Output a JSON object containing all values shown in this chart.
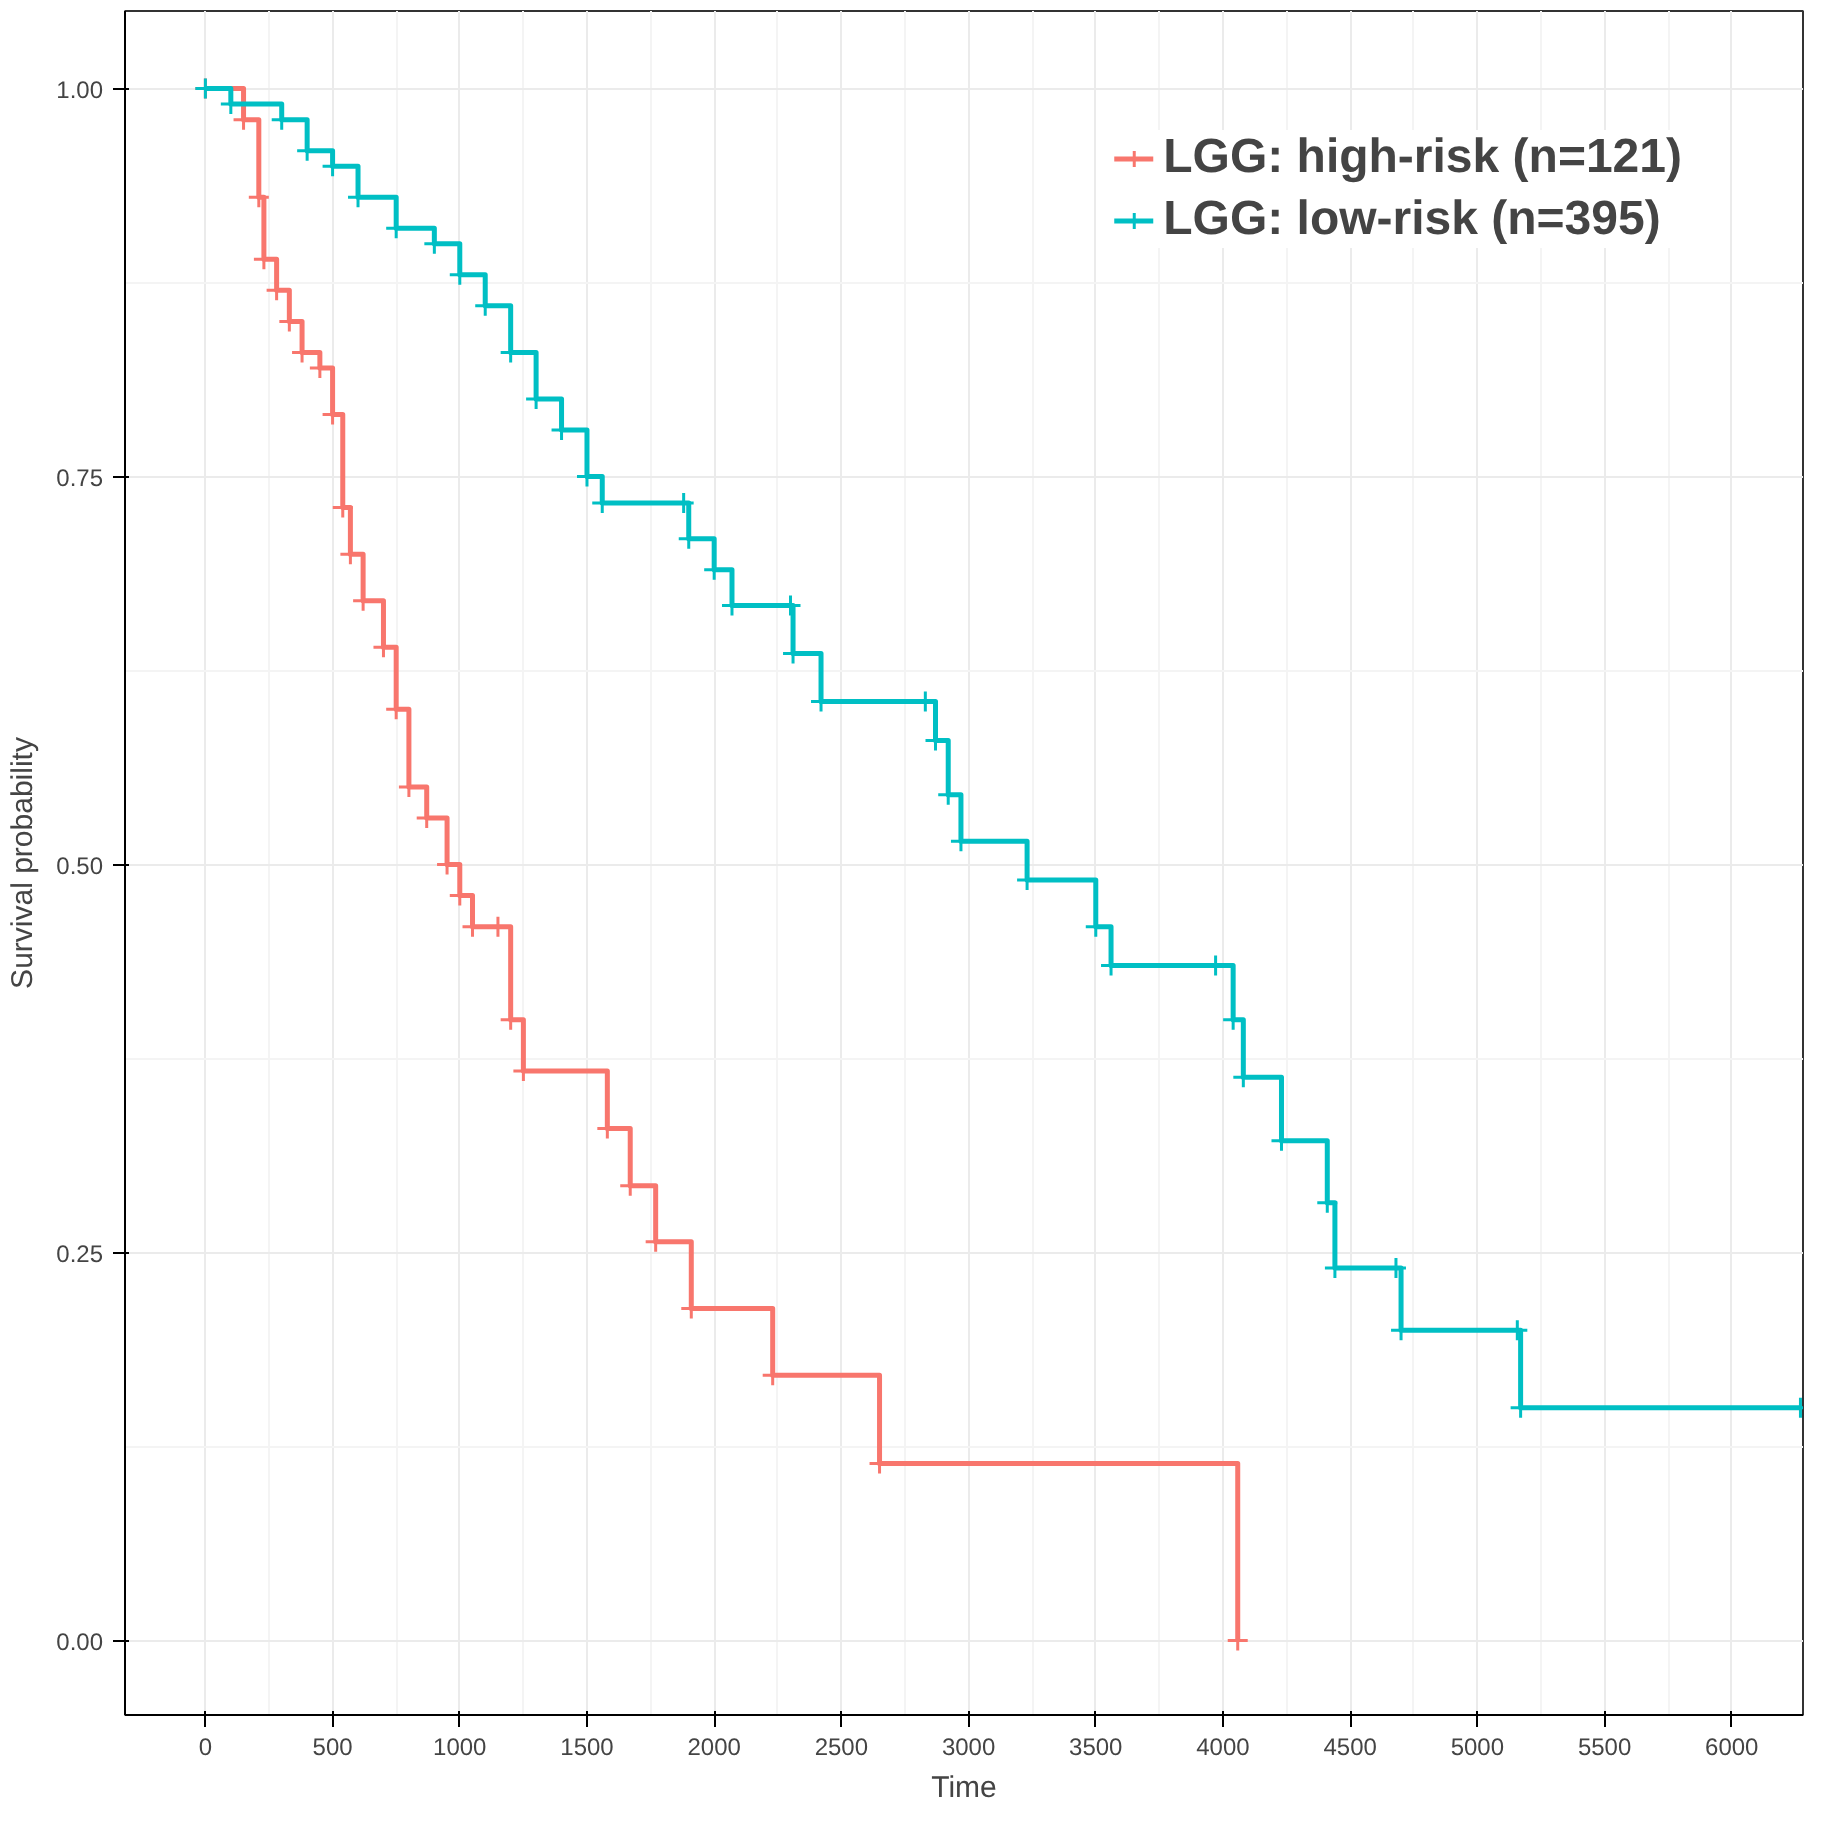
{
  "chart_data": {
    "type": "step",
    "xlabel": "Time",
    "ylabel": "Survival probability",
    "xlim": [
      -316,
      6280
    ],
    "ylim": [
      -0.048,
      1.05
    ],
    "xticks": [
      0,
      500,
      1000,
      1500,
      2000,
      2500,
      3000,
      3500,
      4000,
      4500,
      5000,
      5500,
      6000
    ],
    "yticks": [
      {
        "value": 0,
        "label": "0.00"
      },
      {
        "value": 0.25,
        "label": "0.25"
      },
      {
        "value": 0.5,
        "label": "0.50"
      },
      {
        "value": 0.75,
        "label": "0.75"
      },
      {
        "value": 1,
        "label": "1.00"
      }
    ],
    "grid": true,
    "legend": "top right",
    "marker": "cross",
    "line_style": "solid",
    "series": [
      {
        "name": "LGG: high-risk (n=121)",
        "color": "#f8766d",
        "x": [
          0,
          150,
          210,
          230,
          280,
          330,
          380,
          450,
          500,
          540,
          570,
          620,
          700,
          750,
          800,
          870,
          950,
          1000,
          1050,
          1150,
          1200,
          1250,
          1580,
          1670,
          1770,
          1910,
          2230,
          2650,
          4058
        ],
        "values": [
          1.0,
          0.98,
          0.93,
          0.89,
          0.87,
          0.85,
          0.83,
          0.82,
          0.79,
          0.73,
          0.7,
          0.67,
          0.64,
          0.6,
          0.55,
          0.53,
          0.5,
          0.48,
          0.46,
          0.46,
          0.4,
          0.367,
          0.33,
          0.293,
          0.257,
          0.214,
          0.171,
          0.114,
          0.0
        ]
      },
      {
        "name": "LGG: low-risk (n=395)",
        "color": "#00bfc4",
        "x": [
          0,
          100,
          300,
          400,
          500,
          600,
          750,
          900,
          1000,
          1100,
          1200,
          1300,
          1400,
          1500,
          1560,
          1880,
          1900,
          2000,
          2070,
          2300,
          2310,
          2420,
          2830,
          2870,
          2920,
          2970,
          3230,
          3500,
          3560,
          3971,
          4040,
          4080,
          4230,
          4410,
          4440,
          4680,
          4700,
          5157,
          5170,
          6270
        ],
        "values": [
          1.0,
          0.99,
          0.98,
          0.96,
          0.95,
          0.93,
          0.91,
          0.9,
          0.88,
          0.86,
          0.83,
          0.8,
          0.78,
          0.75,
          0.733,
          0.733,
          0.71,
          0.69,
          0.667,
          0.667,
          0.636,
          0.605,
          0.605,
          0.58,
          0.545,
          0.515,
          0.49,
          0.46,
          0.435,
          0.435,
          0.4,
          0.363,
          0.322,
          0.282,
          0.24,
          0.24,
          0.2,
          0.2,
          0.15,
          0.15
        ]
      }
    ]
  }
}
